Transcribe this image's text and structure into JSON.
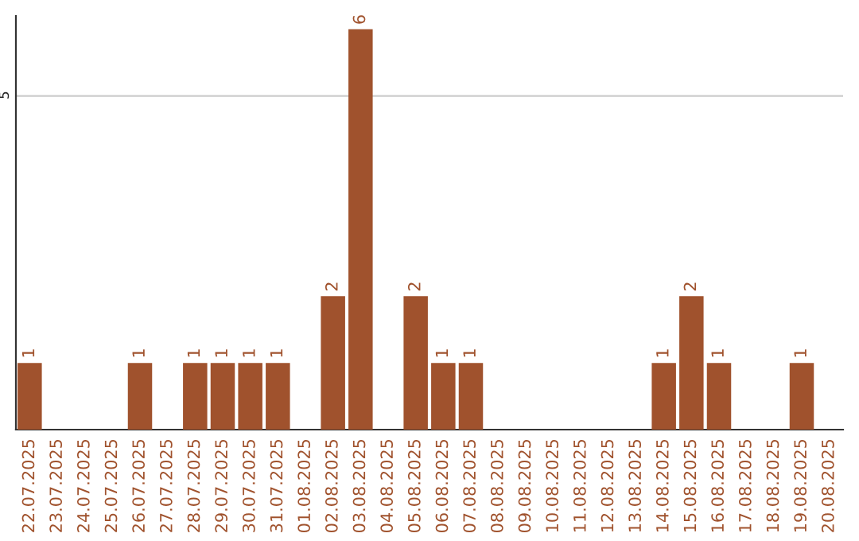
{
  "chart_data": {
    "type": "bar",
    "categories": [
      "22.07.2025",
      "23.07.2025",
      "24.07.2025",
      "25.07.2025",
      "26.07.2025",
      "27.07.2025",
      "28.07.2025",
      "29.07.2025",
      "30.07.2025",
      "31.07.2025",
      "01.08.2025",
      "02.08.2025",
      "03.08.2025",
      "04.08.2025",
      "05.08.2025",
      "06.08.2025",
      "07.08.2025",
      "08.08.2025",
      "09.08.2025",
      "10.08.2025",
      "11.08.2025",
      "12.08.2025",
      "13.08.2025",
      "14.08.2025",
      "15.08.2025",
      "16.08.2025",
      "17.08.2025",
      "18.08.2025",
      "19.08.2025",
      "20.08.2025"
    ],
    "values": [
      1,
      0,
      0,
      0,
      1,
      0,
      1,
      1,
      1,
      1,
      0,
      2,
      6,
      0,
      2,
      1,
      1,
      0,
      0,
      0,
      0,
      0,
      0,
      1,
      2,
      1,
      0,
      0,
      1,
      0
    ],
    "value_labels": [
      "1",
      null,
      null,
      null,
      "1",
      null,
      "1",
      "1",
      "1",
      "1",
      null,
      "2",
      "6",
      null,
      "2",
      "1",
      "1",
      null,
      null,
      null,
      null,
      null,
      null,
      "1",
      "2",
      "1",
      null,
      null,
      "1",
      null
    ],
    "color": "#a0522d",
    "ylim": [
      0,
      6.2
    ],
    "yticks": [
      5
    ],
    "grid": "y"
  }
}
